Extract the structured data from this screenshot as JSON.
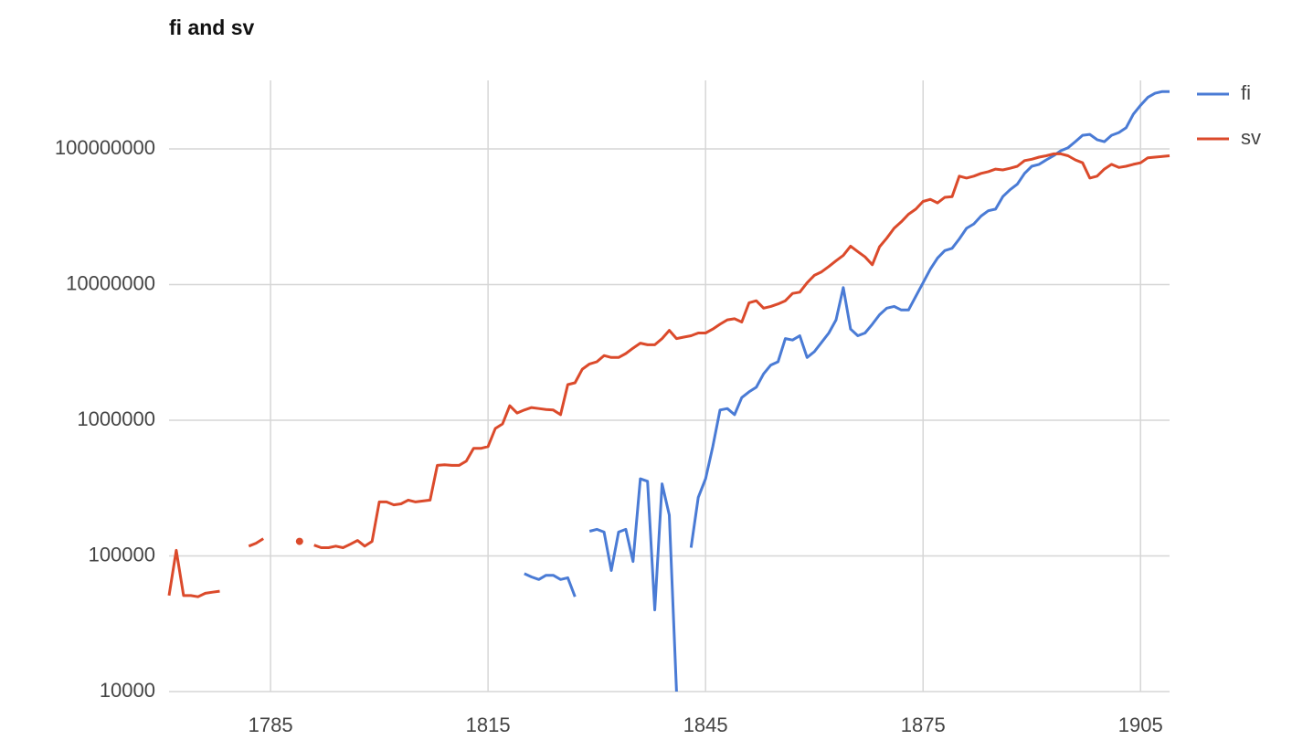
{
  "chart_data": {
    "type": "line",
    "title": "fi and sv",
    "x": [
      1771,
      1772,
      1773,
      1774,
      1775,
      1776,
      1777,
      1778,
      1779,
      1780,
      1781,
      1782,
      1783,
      1784,
      1785,
      1786,
      1787,
      1788,
      1789,
      1790,
      1791,
      1792,
      1793,
      1794,
      1795,
      1796,
      1797,
      1798,
      1799,
      1800,
      1801,
      1802,
      1803,
      1804,
      1805,
      1806,
      1807,
      1808,
      1809,
      1810,
      1811,
      1812,
      1813,
      1814,
      1815,
      1816,
      1817,
      1818,
      1819,
      1820,
      1821,
      1822,
      1823,
      1824,
      1825,
      1826,
      1827,
      1828,
      1829,
      1830,
      1831,
      1832,
      1833,
      1834,
      1835,
      1836,
      1837,
      1838,
      1839,
      1840,
      1841,
      1842,
      1843,
      1844,
      1845,
      1846,
      1847,
      1848,
      1849,
      1850,
      1851,
      1852,
      1853,
      1854,
      1855,
      1856,
      1857,
      1858,
      1859,
      1860,
      1861,
      1862,
      1863,
      1864,
      1865,
      1866,
      1867,
      1868,
      1869,
      1870,
      1871,
      1872,
      1873,
      1874,
      1875,
      1876,
      1877,
      1878,
      1879,
      1880,
      1881,
      1882,
      1883,
      1884,
      1885,
      1886,
      1887,
      1888,
      1889,
      1890,
      1891,
      1892,
      1893,
      1894,
      1895,
      1896,
      1897,
      1898,
      1899,
      1900,
      1901,
      1902,
      1903,
      1904,
      1905,
      1906,
      1907,
      1908,
      1909
    ],
    "series": [
      {
        "name": "fi",
        "color": "#4a7bd5",
        "values": [
          null,
          null,
          null,
          null,
          null,
          null,
          null,
          null,
          null,
          null,
          null,
          null,
          null,
          null,
          null,
          null,
          null,
          null,
          null,
          null,
          null,
          null,
          null,
          null,
          null,
          null,
          null,
          null,
          null,
          null,
          null,
          null,
          null,
          null,
          null,
          null,
          null,
          null,
          null,
          null,
          null,
          null,
          null,
          null,
          null,
          null,
          null,
          null,
          null,
          74000,
          70000,
          67000,
          72000,
          72000,
          67000,
          69000,
          50000,
          null,
          152000,
          157000,
          150000,
          78000,
          150000,
          157000,
          91000,
          370000,
          355000,
          40000,
          340000,
          200000,
          10000,
          null,
          115000,
          270000,
          370000,
          640000,
          1190000,
          1220000,
          1100000,
          1470000,
          1620000,
          1750000,
          2200000,
          2550000,
          2700000,
          4000000,
          3900000,
          4200000,
          2900000,
          3200000,
          3750000,
          4400000,
          5500000,
          9500000,
          4700000,
          4200000,
          4400000,
          5100000,
          6000000,
          6700000,
          6900000,
          6500000,
          6500000,
          8200000,
          10300000,
          13000000,
          15700000,
          17800000,
          18500000,
          21700000,
          26000000,
          28000000,
          32000000,
          35000000,
          36000000,
          44500000,
          50000000,
          55000000,
          66000000,
          74500000,
          77000000,
          83000000,
          89000000,
          97000000,
          102000000,
          113000000,
          126000000,
          128000000,
          117000000,
          113000000,
          126000000,
          132000000,
          143000000,
          180000000,
          210000000,
          240000000,
          257000000,
          265000000,
          265000000
        ]
      },
      {
        "name": "sv",
        "color": "#db4a2b",
        "values": [
          51000,
          110000,
          51000,
          51000,
          50000,
          53000,
          54000,
          55000,
          null,
          null,
          null,
          118000,
          124000,
          134000,
          null,
          null,
          null,
          null,
          128000,
          null,
          120000,
          115000,
          115000,
          118000,
          115000,
          122000,
          130000,
          118000,
          128000,
          250000,
          250000,
          238000,
          242000,
          258000,
          250000,
          254000,
          258000,
          465000,
          470000,
          465000,
          465000,
          500000,
          620000,
          620000,
          640000,
          870000,
          940000,
          1280000,
          1130000,
          1190000,
          1240000,
          1220000,
          1200000,
          1190000,
          1100000,
          1830000,
          1890000,
          2380000,
          2600000,
          2700000,
          3000000,
          2900000,
          2900000,
          3100000,
          3400000,
          3700000,
          3600000,
          3600000,
          4000000,
          4600000,
          4000000,
          4100000,
          4200000,
          4400000,
          4400000,
          4700000,
          5100000,
          5500000,
          5600000,
          5300000,
          7350000,
          7600000,
          6700000,
          6900000,
          7200000,
          7600000,
          8600000,
          8800000,
          10300000,
          11700000,
          12400000,
          13600000,
          15000000,
          16400000,
          19200000,
          17500000,
          16000000,
          14000000,
          19000000,
          22000000,
          26000000,
          29000000,
          33000000,
          36000000,
          41000000,
          42500000,
          40000000,
          44000000,
          44500000,
          63000000,
          61000000,
          63000000,
          66000000,
          68000000,
          71000000,
          70000000,
          72000000,
          74500000,
          82000000,
          84000000,
          87000000,
          89000000,
          92000000,
          92000000,
          89000000,
          83000000,
          79000000,
          61000000,
          63000000,
          71000000,
          77000000,
          73000000,
          74500000,
          77000000,
          79000000,
          86000000,
          87000000,
          88000000,
          89000000
        ]
      }
    ],
    "xlim": [
      1771,
      1909
    ],
    "xticks": [
      1785,
      1815,
      1845,
      1875,
      1905
    ],
    "ylim": [
      10000,
      320000000
    ],
    "yticks": [
      10000,
      100000,
      1000000,
      10000000,
      100000000
    ],
    "yscale": "log",
    "grid": true,
    "legend": "right"
  }
}
